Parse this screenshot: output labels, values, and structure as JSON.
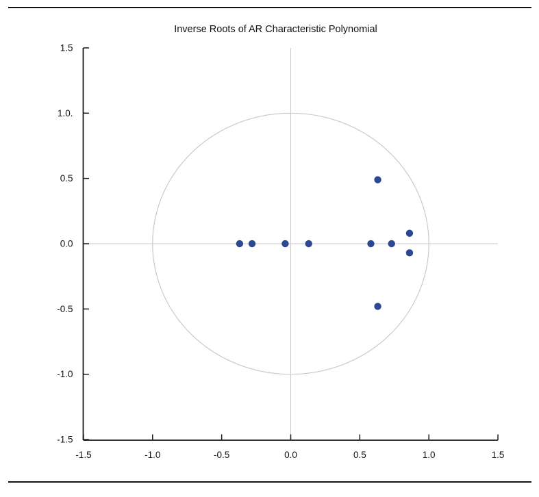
{
  "chart_data": {
    "type": "scatter",
    "title": "Inverse Roots of AR Characteristic Polynomial",
    "xlabel": "",
    "ylabel": "",
    "xlim": [
      -1.5,
      1.5
    ],
    "ylim": [
      -1.5,
      1.5
    ],
    "grid": false,
    "legend_position": "none",
    "unit_circle": true,
    "zero_lines": true,
    "x_ticks": [
      {
        "v": -1.5,
        "label": "-1.5"
      },
      {
        "v": -1.0,
        "label": "-1.0"
      },
      {
        "v": -0.5,
        "label": "-0.5"
      },
      {
        "v": 0.0,
        "label": "0.0"
      },
      {
        "v": 0.5,
        "label": "0.5"
      },
      {
        "v": 1.0,
        "label": "1.0"
      },
      {
        "v": 1.5,
        "label": "1.5"
      }
    ],
    "y_ticks": [
      {
        "v": 1.5,
        "label": "1.5"
      },
      {
        "v": 1.0,
        "label": "1.0."
      },
      {
        "v": 0.5,
        "label": "0.5"
      },
      {
        "v": 0.0,
        "label": "0.0"
      },
      {
        "v": -0.5,
        "label": "-0.5"
      },
      {
        "v": -1.0,
        "label": "-1.0"
      },
      {
        "v": -1.5,
        "label": "-1.5"
      }
    ],
    "points": [
      {
        "re": -0.37,
        "im": 0.0
      },
      {
        "re": -0.28,
        "im": 0.0
      },
      {
        "re": -0.04,
        "im": 0.0
      },
      {
        "re": 0.13,
        "im": 0.0
      },
      {
        "re": 0.58,
        "im": 0.0
      },
      {
        "re": 0.73,
        "im": 0.0
      },
      {
        "re": 0.86,
        "im": 0.08
      },
      {
        "re": 0.86,
        "im": -0.07
      },
      {
        "re": 0.63,
        "im": 0.49
      },
      {
        "re": 0.63,
        "im": -0.48
      }
    ],
    "colors": {
      "point": "#2a4896",
      "axis": "#1a1a1a",
      "grid": "#c9c9c9",
      "background": "#ffffff"
    }
  }
}
